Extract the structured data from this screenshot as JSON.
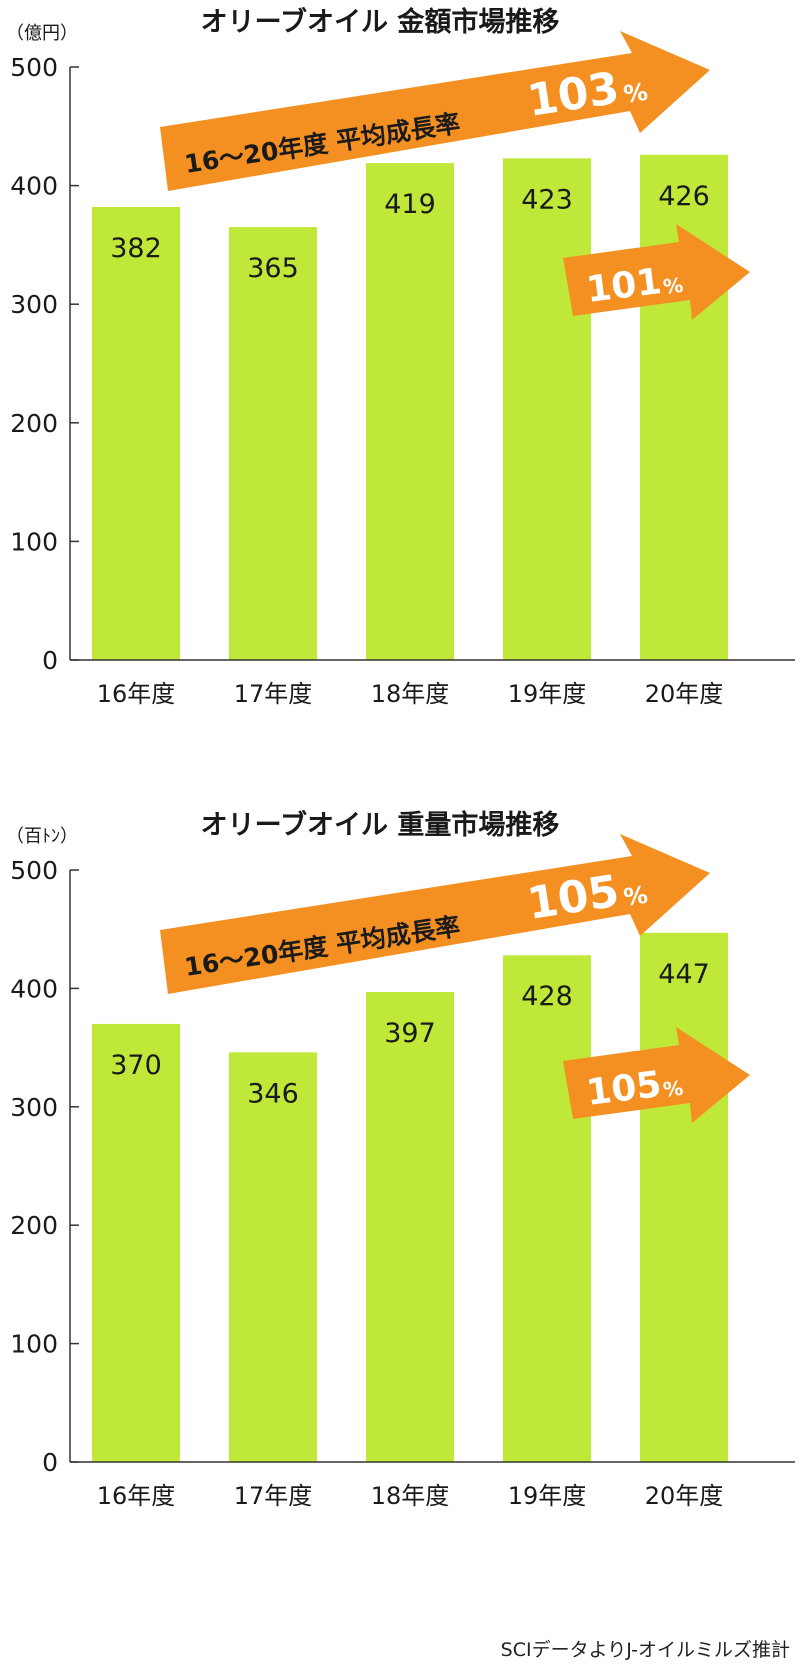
{
  "colors": {
    "bar": "#c0e838",
    "arrow": "#f49022",
    "axis": "#333333",
    "text": "#1a1a1a"
  },
  "chart_data": [
    {
      "type": "bar",
      "title": "オリーブオイル 金額市場推移",
      "unit": "（億円）",
      "categories": [
        "16年度",
        "17年度",
        "18年度",
        "19年度",
        "20年度"
      ],
      "values": [
        382,
        365,
        419,
        423,
        426
      ],
      "ylim": [
        0,
        500
      ],
      "yticks": [
        0,
        100,
        200,
        300,
        400,
        500
      ],
      "grid": false,
      "annotations": {
        "big_arrow_text": "16〜20年度 平均成長率",
        "big_arrow_value": "103",
        "small_arrow_value": "101",
        "percent": "%"
      }
    },
    {
      "type": "bar",
      "title": "オリーブオイル 重量市場推移",
      "unit": "（百ﾄﾝ）",
      "categories": [
        "16年度",
        "17年度",
        "18年度",
        "19年度",
        "20年度"
      ],
      "values": [
        370,
        346,
        397,
        428,
        447
      ],
      "ylim": [
        0,
        500
      ],
      "yticks": [
        0,
        100,
        200,
        300,
        400,
        500
      ],
      "grid": false,
      "annotations": {
        "big_arrow_text": "16〜20年度 平均成長率",
        "big_arrow_value": "105",
        "small_arrow_value": "105",
        "percent": "%"
      }
    }
  ],
  "source": "SCIデータよりJ-オイルミルズ推計"
}
